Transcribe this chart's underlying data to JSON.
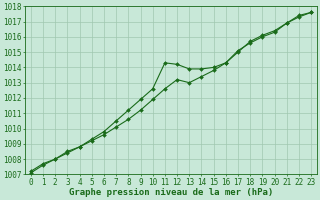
{
  "xlabel": "Graphe pression niveau de la mer (hPa)",
  "ylim": [
    1007,
    1018
  ],
  "xlim": [
    -0.5,
    23.5
  ],
  "yticks": [
    1007,
    1008,
    1009,
    1010,
    1011,
    1012,
    1013,
    1014,
    1015,
    1016,
    1017,
    1018
  ],
  "xticks": [
    0,
    1,
    2,
    3,
    4,
    5,
    6,
    7,
    8,
    9,
    10,
    11,
    12,
    13,
    14,
    15,
    16,
    17,
    18,
    19,
    20,
    21,
    22,
    23
  ],
  "line1_x": [
    0,
    1,
    2,
    3,
    4,
    5,
    6,
    7,
    8,
    9,
    10,
    11,
    12,
    13,
    14,
    15,
    16,
    17,
    18,
    19,
    20,
    21,
    22,
    23
  ],
  "line1_y": [
    1007.1,
    1007.6,
    1008.0,
    1008.4,
    1008.8,
    1009.2,
    1009.6,
    1010.1,
    1010.6,
    1011.2,
    1011.9,
    1012.6,
    1013.2,
    1013.0,
    1013.4,
    1013.8,
    1014.3,
    1015.1,
    1015.6,
    1016.0,
    1016.3,
    1016.9,
    1017.3,
    1017.6
  ],
  "line2_x": [
    0,
    1,
    2,
    3,
    4,
    5,
    6,
    7,
    8,
    9,
    10,
    11,
    12,
    13,
    14,
    15,
    16,
    17,
    18,
    19,
    20,
    21,
    22,
    23
  ],
  "line2_y": [
    1007.2,
    1007.7,
    1008.0,
    1008.5,
    1008.8,
    1009.3,
    1009.8,
    1010.5,
    1011.2,
    1011.9,
    1012.6,
    1014.3,
    1014.2,
    1013.9,
    1013.9,
    1014.0,
    1014.3,
    1015.0,
    1015.7,
    1016.1,
    1016.4,
    1016.9,
    1017.4,
    1017.6
  ],
  "line_color": "#1a6b1a",
  "marker_color": "#1a6b1a",
  "bg_color": "#c8e8d8",
  "grid_color": "#a0c8b0",
  "text_color": "#1a6b1a",
  "font_size_label": 6.5,
  "font_size_tick": 5.5
}
